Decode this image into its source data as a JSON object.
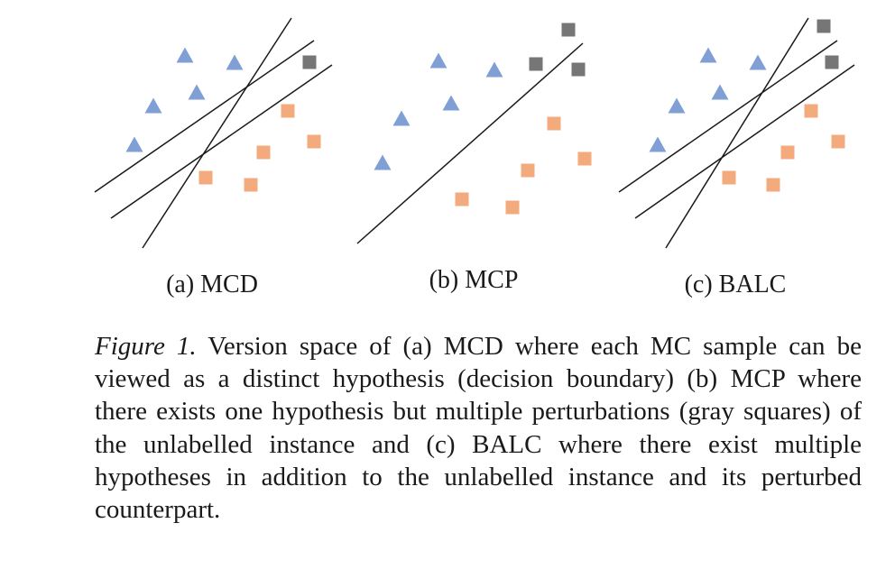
{
  "figure": {
    "colors": {
      "triangle": "#7f9fd5",
      "square_labelled": "#f3ab7e",
      "square_unlabelled": "#767676",
      "line": "#1a1a1a"
    },
    "panels": [
      {
        "id": "a",
        "label": "(a) MCD"
      },
      {
        "id": "b",
        "label": "(b) MCP"
      },
      {
        "id": "c",
        "label": "(c) BALC"
      }
    ]
  },
  "caption": {
    "lead": "Figure 1.",
    "text": "Version space of (a) MCD where each MC sample can be viewed as a distinct hypothesis (decision boundary) (b) MCP where there exists one hypothesis but multiple perturbations (gray squares) of the unlabelled instance and (c) BALC where there exist multiple hypotheses in addition to the unlabelled instance and its perturbed counterpart."
  }
}
